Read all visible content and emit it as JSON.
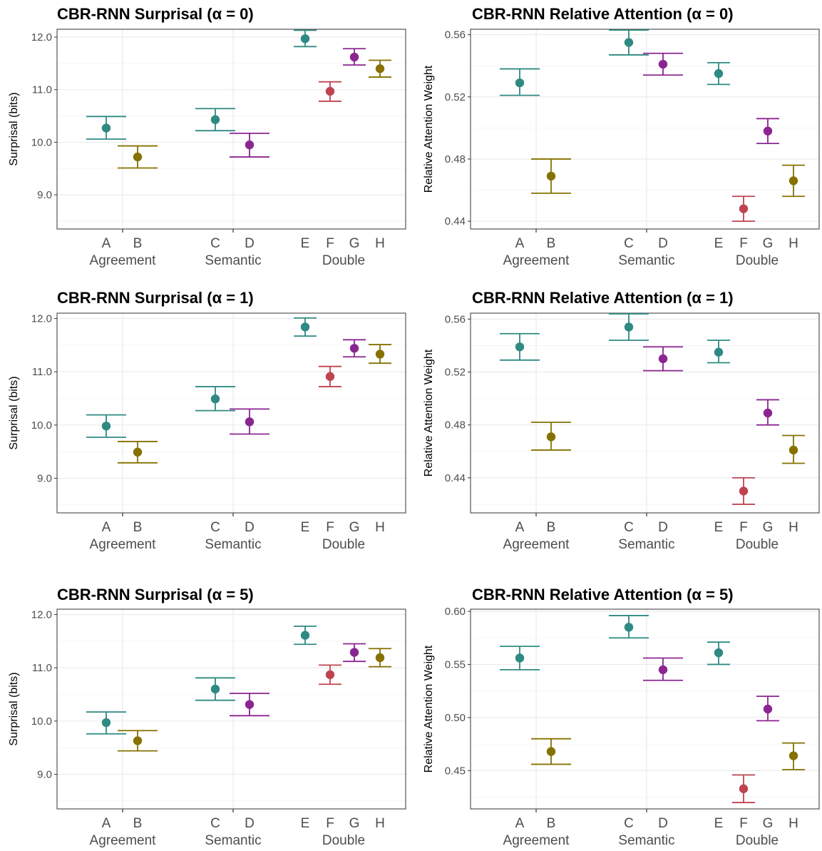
{
  "colors": {
    "A": "#2e8a82",
    "B": "#857200",
    "C": "#2e8a82",
    "D": "#8b2591",
    "E": "#2e8a82",
    "F": "#bd4450",
    "G": "#8b2591",
    "H": "#857200"
  },
  "groups": [
    "Agreement",
    "Semantic",
    "Double"
  ],
  "chart_data": [
    {
      "type": "scatter",
      "title": "CBR-RNN Surprisal (α = 0)",
      "ylabel": "Surprisal (bits)",
      "ylim": [
        8.35,
        12.15
      ],
      "yticks": [
        "9.0",
        "10.0",
        "11.0",
        "12.0"
      ],
      "categories": [
        "A",
        "B",
        "C",
        "D",
        "E",
        "F",
        "G",
        "H"
      ],
      "values": [
        10.27,
        9.72,
        10.43,
        9.95,
        11.97,
        10.97,
        11.62,
        11.4
      ],
      "lower": [
        10.06,
        9.51,
        10.22,
        9.72,
        11.82,
        10.78,
        11.47,
        11.24
      ],
      "upper": [
        10.49,
        9.93,
        10.64,
        10.17,
        12.13,
        11.15,
        11.78,
        11.56
      ]
    },
    {
      "type": "scatter",
      "title": "CBR-RNN Relative Attention (α = 0)",
      "ylabel": "Relative Attention Weight",
      "ylim": [
        0.435,
        0.5635
      ],
      "yticks": [
        "0.44",
        "0.48",
        "0.52",
        "0.56"
      ],
      "categories": [
        "A",
        "B",
        "C",
        "D",
        "E",
        "F",
        "G",
        "H"
      ],
      "values": [
        0.529,
        0.469,
        0.555,
        0.541,
        0.535,
        0.448,
        0.498,
        0.466
      ],
      "lower": [
        0.521,
        0.458,
        0.547,
        0.534,
        0.528,
        0.44,
        0.49,
        0.456
      ],
      "upper": [
        0.538,
        0.48,
        0.563,
        0.548,
        0.542,
        0.456,
        0.506,
        0.476
      ]
    },
    {
      "type": "scatter",
      "title": "CBR-RNN Surprisal (α = 1)",
      "ylabel": "Surprisal (bits)",
      "ylim": [
        8.35,
        12.1
      ],
      "yticks": [
        "9.0",
        "10.0",
        "11.0",
        "12.0"
      ],
      "categories": [
        "A",
        "B",
        "C",
        "D",
        "E",
        "F",
        "G",
        "H"
      ],
      "values": [
        9.98,
        9.49,
        10.49,
        10.06,
        11.84,
        10.91,
        11.44,
        11.33
      ],
      "lower": [
        9.77,
        9.29,
        10.27,
        9.83,
        11.67,
        10.72,
        11.28,
        11.16
      ],
      "upper": [
        10.19,
        9.69,
        10.72,
        10.3,
        12.01,
        11.1,
        11.6,
        11.51
      ]
    },
    {
      "type": "scatter",
      "title": "CBR-RNN Relative Attention (α = 1)",
      "ylabel": "Relative Attention Weight",
      "ylim": [
        0.4135,
        0.5645
      ],
      "yticks": [
        "0.44",
        "0.48",
        "0.52",
        "0.56"
      ],
      "categories": [
        "A",
        "B",
        "C",
        "D",
        "E",
        "F",
        "G",
        "H"
      ],
      "values": [
        0.539,
        0.471,
        0.554,
        0.53,
        0.535,
        0.43,
        0.489,
        0.461
      ],
      "lower": [
        0.529,
        0.461,
        0.544,
        0.521,
        0.527,
        0.42,
        0.48,
        0.451
      ],
      "upper": [
        0.549,
        0.482,
        0.564,
        0.539,
        0.544,
        0.44,
        0.499,
        0.472
      ]
    },
    {
      "type": "scatter",
      "title": "CBR-RNN Surprisal (α = 5)",
      "ylabel": "Surprisal (bits)",
      "ylim": [
        8.35,
        12.1
      ],
      "yticks": [
        "9.0",
        "10.0",
        "11.0",
        "12.0"
      ],
      "categories": [
        "A",
        "B",
        "C",
        "D",
        "E",
        "F",
        "G",
        "H"
      ],
      "values": [
        9.97,
        9.63,
        10.6,
        10.31,
        11.61,
        10.87,
        11.29,
        11.19
      ],
      "lower": [
        9.76,
        9.44,
        10.39,
        10.1,
        11.44,
        10.69,
        11.12,
        11.02
      ],
      "upper": [
        10.17,
        9.82,
        10.81,
        10.52,
        11.78,
        11.05,
        11.45,
        11.36
      ]
    },
    {
      "type": "scatter",
      "title": "CBR-RNN Relative Attention (α = 5)",
      "ylabel": "Relative Attention Weight",
      "ylim": [
        0.414,
        0.602
      ],
      "yticks": [
        "0.45",
        "0.50",
        "0.55",
        "0.60"
      ],
      "categories": [
        "A",
        "B",
        "C",
        "D",
        "E",
        "F",
        "G",
        "H"
      ],
      "values": [
        0.556,
        0.468,
        0.585,
        0.545,
        0.561,
        0.433,
        0.508,
        0.464
      ],
      "lower": [
        0.545,
        0.456,
        0.575,
        0.535,
        0.55,
        0.42,
        0.497,
        0.451
      ],
      "upper": [
        0.567,
        0.48,
        0.596,
        0.556,
        0.571,
        0.446,
        0.52,
        0.476
      ]
    }
  ]
}
